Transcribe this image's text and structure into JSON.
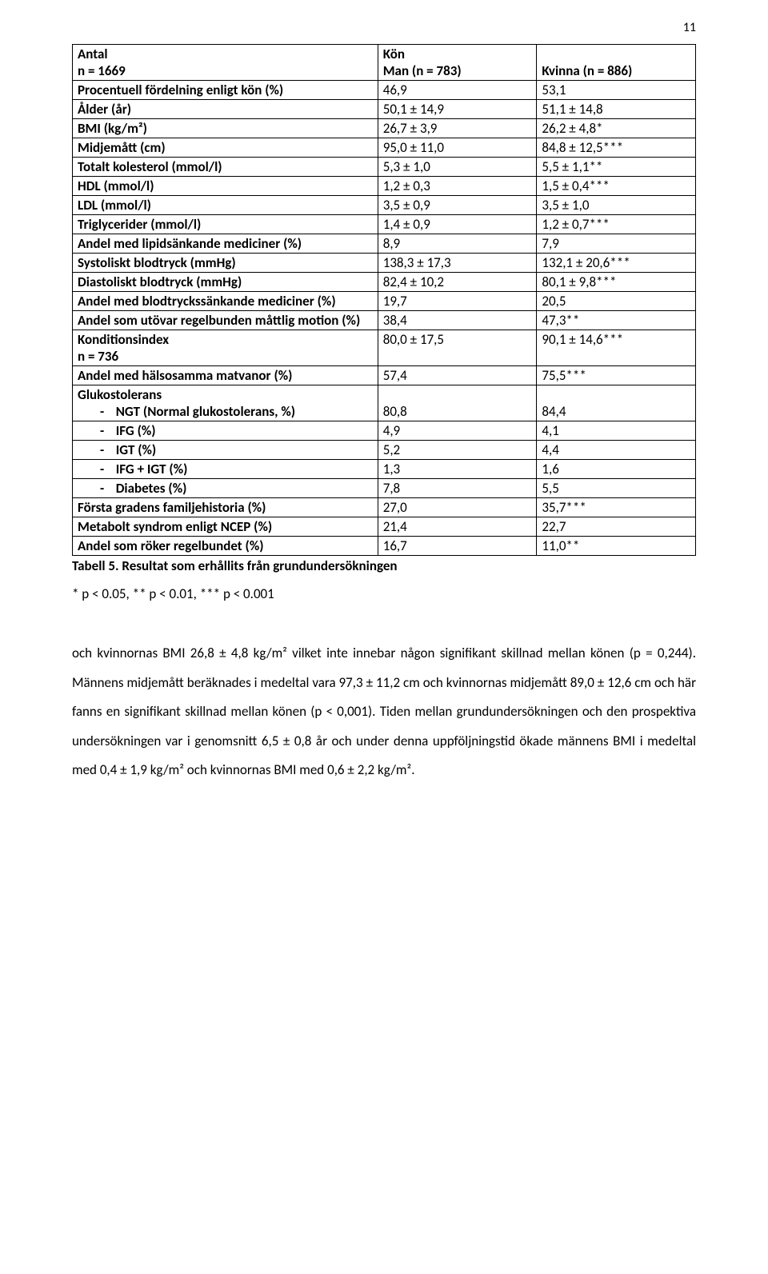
{
  "page_number": "11",
  "table": {
    "header": {
      "c0": "Antal\nn = 1669",
      "c1_top": "Kön",
      "c1": "Man (n = 783)",
      "c2": "Kvinna (n = 886)"
    },
    "rows": [
      {
        "label": "Procentuell fördelning enligt kön (%)",
        "v1": "46,9",
        "v2": "53,1"
      },
      {
        "label": "Ålder (år)",
        "v1": "50,1 ± 14,9",
        "v2": "51,1 ± 14,8"
      },
      {
        "label": "BMI (kg/m²)",
        "v1": "26,7 ± 3,9",
        "v2": "26,2 ± 4,8*"
      },
      {
        "label": "Midjemått (cm)",
        "v1": "95,0 ± 11,0",
        "v2": "84,8 ± 12,5***"
      },
      {
        "label": "Totalt kolesterol (mmol/l)",
        "v1": "5,3 ± 1,0",
        "v2": "5,5 ± 1,1**"
      },
      {
        "label": "HDL (mmol/l)",
        "v1": "1,2 ± 0,3",
        "v2": "1,5 ± 0,4***"
      },
      {
        "label": "LDL (mmol/l)",
        "v1": "3,5 ± 0,9",
        "v2": "3,5 ± 1,0"
      },
      {
        "label": "Triglycerider (mmol/l)",
        "v1": "1,4 ± 0,9",
        "v2": "1,2 ± 0,7***"
      },
      {
        "label": "Andel med lipidsänkande mediciner (%)",
        "v1": "8,9",
        "v2": "7,9"
      },
      {
        "label": "Systoliskt blodtryck (mmHg)",
        "v1": "138,3 ± 17,3",
        "v2": "132,1 ± 20,6***"
      },
      {
        "label": "Diastoliskt blodtryck (mmHg)",
        "v1": "82,4 ± 10,2",
        "v2": "80,1 ± 9,8***"
      },
      {
        "label": "Andel med blodtryckssänkande mediciner (%)",
        "v1": "19,7",
        "v2": "20,5"
      },
      {
        "label": "Andel som utövar regelbunden måttlig motion (%)",
        "v1": "38,4",
        "v2": "47,3**"
      },
      {
        "label": "Konditionsindex\nn = 736",
        "v1": "80,0 ± 17,5",
        "v2": "90,1 ± 14,6***"
      },
      {
        "label": "Andel med hälsosamma matvanor (%)",
        "v1": "57,4",
        "v2": "75,5***"
      }
    ],
    "glukos_header": "Glukostolerans",
    "glukos_rows": [
      {
        "label": "NGT (Normal glukostolerans, %)",
        "v1": "80,8",
        "v2": "84,4"
      },
      {
        "label": "IFG (%)",
        "v1": "4,9",
        "v2": "4,1"
      },
      {
        "label": "IGT (%)",
        "v1": "5,2",
        "v2": "4,4"
      },
      {
        "label": "IFG + IGT (%)",
        "v1": "1,3",
        "v2": "1,6"
      },
      {
        "label": "Diabetes (%)",
        "v1": "7,8",
        "v2": "5,5"
      }
    ],
    "tail_rows": [
      {
        "label": "Första gradens familjehistoria (%)",
        "v1": "27,0",
        "v2": "35,7***"
      },
      {
        "label": "Metabolt syndrom enligt NCEP (%)",
        "v1": "21,4",
        "v2": "22,7"
      },
      {
        "label": "Andel som röker regelbundet (%)",
        "v1": "16,7",
        "v2": "11,0**"
      }
    ]
  },
  "caption": "Tabell 5. Resultat som erhållits från grundundersökningen",
  "p_note": "* p < 0.05, ** p < 0.01, *** p < 0.001",
  "body": "och kvinnornas BMI 26,8 ± 4,8 kg/m² vilket inte innebar någon signifikant skillnad mellan könen (p = 0,244). Männens midjemått beräknades i medeltal vara 97,3 ± 11,2 cm och kvinnornas midjemått 89,0 ± 12,6 cm och här fanns en signifikant skillnad mellan könen (p < 0,001). Tiden mellan grundundersökningen och den prospektiva undersökningen var i genomsnitt 6,5 ± 0,8 år och under denna uppföljningstid ökade männens BMI i medeltal med 0,4 ± 1,9 kg/m² och kvinnornas BMI med 0,6 ± 2,2 kg/m²."
}
